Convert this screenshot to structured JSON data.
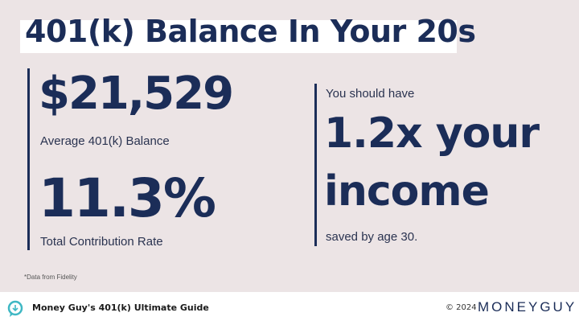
{
  "title": "401(k) Balance In Your 20s",
  "left": {
    "balance_value": "$21,529",
    "balance_label": "Average 401(k) Balance",
    "rate_value": "11.3%",
    "rate_label": "Total Contribution Rate"
  },
  "right": {
    "intro": "You should have",
    "line1": "1.2x your",
    "line2": "income",
    "outro": "saved by age 30."
  },
  "footnote": "*Data from Fidelity",
  "footer": {
    "guide_title": "Money Guy's 401(k) Ultimate Guide",
    "copyright": "© 2024",
    "brand": "MONEYGUY",
    "accent": "#3fb8c4"
  }
}
